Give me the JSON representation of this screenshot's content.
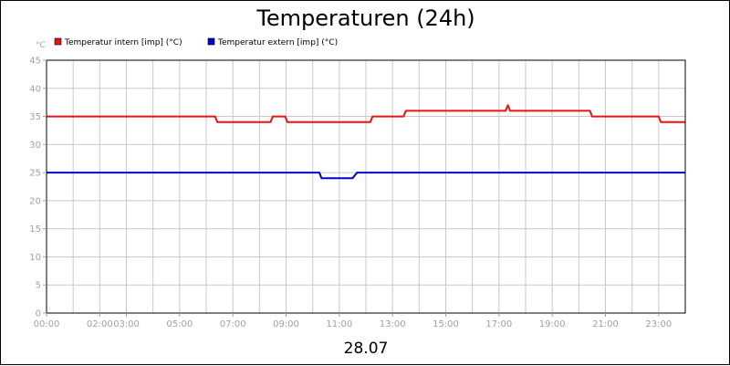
{
  "chart_data": {
    "type": "line",
    "title": "Temperaturen (24h)",
    "xlabel": "28.07",
    "ylabel": "°C",
    "ylim": [
      0,
      45
    ],
    "yticks": [
      0,
      5,
      10,
      15,
      20,
      25,
      30,
      35,
      40,
      45
    ],
    "xlim": [
      "00:00",
      "24:00"
    ],
    "xticks": [
      {
        "label": "00:00",
        "h": 0
      },
      {
        "label": "02:00",
        "h": 2
      },
      {
        "label": "03:00",
        "h": 3
      },
      {
        "label": "05:00",
        "h": 5
      },
      {
        "label": "07:00",
        "h": 7
      },
      {
        "label": "09:00",
        "h": 9
      },
      {
        "label": "11:00",
        "h": 11
      },
      {
        "label": "13:00",
        "h": 13
      },
      {
        "label": "15:00",
        "h": 15
      },
      {
        "label": "17:00",
        "h": 17
      },
      {
        "label": "19:00",
        "h": 19
      },
      {
        "label": "21:00",
        "h": 21
      },
      {
        "label": "23:00",
        "h": 23
      }
    ],
    "grid": true,
    "legend_position": "top-left",
    "series": [
      {
        "name": "Temperatur intern [imp] (°C)",
        "color": "#ee1111",
        "points": [
          {
            "x": "00:00",
            "y": 35
          },
          {
            "x": "06:20",
            "y": 35
          },
          {
            "x": "06:25",
            "y": 34
          },
          {
            "x": "08:25",
            "y": 34
          },
          {
            "x": "08:30",
            "y": 35
          },
          {
            "x": "08:58",
            "y": 35
          },
          {
            "x": "09:03",
            "y": 34
          },
          {
            "x": "12:10",
            "y": 34
          },
          {
            "x": "12:15",
            "y": 35
          },
          {
            "x": "13:25",
            "y": 35
          },
          {
            "x": "13:30",
            "y": 36
          },
          {
            "x": "17:15",
            "y": 36
          },
          {
            "x": "17:20",
            "y": 37
          },
          {
            "x": "17:25",
            "y": 36
          },
          {
            "x": "20:25",
            "y": 36
          },
          {
            "x": "20:30",
            "y": 35
          },
          {
            "x": "23:00",
            "y": 35
          },
          {
            "x": "23:05",
            "y": 34
          },
          {
            "x": "24:00",
            "y": 34
          }
        ]
      },
      {
        "name": "Temperatur extern [imp] (°C)",
        "color": "#0000cc",
        "points": [
          {
            "x": "00:00",
            "y": 25
          },
          {
            "x": "10:15",
            "y": 25
          },
          {
            "x": "10:20",
            "y": 24
          },
          {
            "x": "11:30",
            "y": 24
          },
          {
            "x": "11:40",
            "y": 25
          },
          {
            "x": "24:00",
            "y": 25
          }
        ]
      }
    ]
  }
}
